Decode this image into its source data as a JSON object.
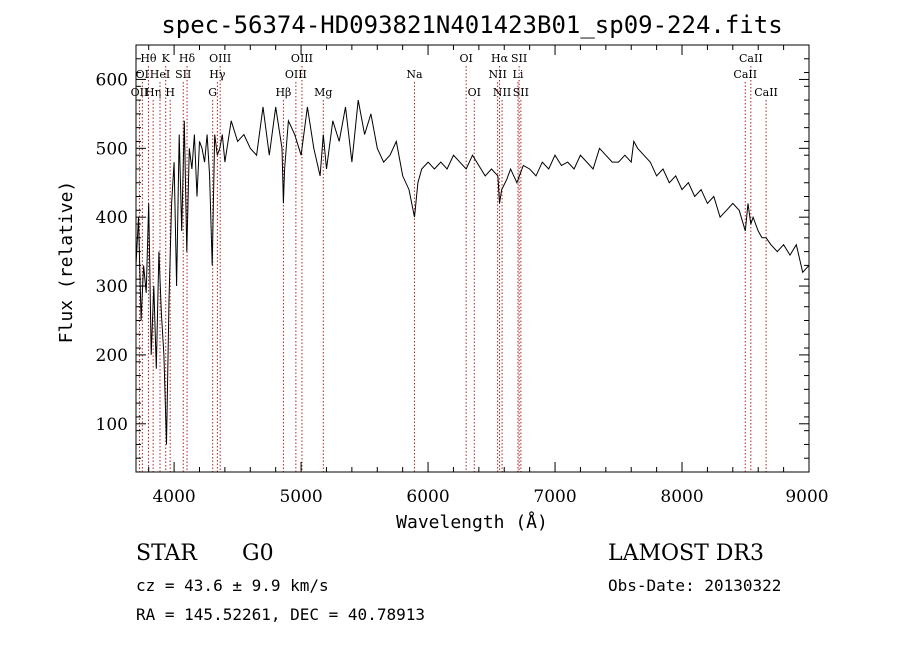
{
  "chart_data": {
    "type": "line",
    "title": "spec-56374-HD093821N401423B01_sp09-224.fits",
    "xlabel": "Wavelength (Å)",
    "ylabel": "Flux (relative)",
    "xlim": [
      3700,
      9000
    ],
    "ylim": [
      30,
      650
    ],
    "x_ticks": [
      4000,
      5000,
      6000,
      7000,
      8000,
      9000
    ],
    "y_ticks": [
      100,
      200,
      300,
      400,
      500,
      600
    ],
    "grid": false,
    "line_color": "#000000",
    "marker_color": "#b22222",
    "spectral_lines": [
      {
        "label": "OII",
        "wavelength": 3727,
        "row": 3
      },
      {
        "label": "Hθ",
        "wavelength": 3798,
        "row": 1
      },
      {
        "label": "OI",
        "wavelength": 3750,
        "row": 2
      },
      {
        "label": "Hη",
        "wavelength": 3835,
        "row": 3
      },
      {
        "label": "HeI",
        "wavelength": 3889,
        "row": 2
      },
      {
        "label": "K",
        "wavelength": 3934,
        "row": 1
      },
      {
        "label": "H",
        "wavelength": 3969,
        "row": 3
      },
      {
        "label": "SII",
        "wavelength": 4072,
        "row": 2
      },
      {
        "label": "Hδ",
        "wavelength": 4102,
        "row": 1
      },
      {
        "label": "OIII",
        "wavelength": 4363,
        "row": 1
      },
      {
        "label": "Hγ",
        "wavelength": 4341,
        "row": 2
      },
      {
        "label": "G",
        "wavelength": 4304,
        "row": 3
      },
      {
        "label": "Hβ",
        "wavelength": 4861,
        "row": 3
      },
      {
        "label": "OIII",
        "wavelength": 5007,
        "row": 1
      },
      {
        "label": "OIII",
        "wavelength": 4959,
        "row": 2
      },
      {
        "label": "Mg",
        "wavelength": 5175,
        "row": 3
      },
      {
        "label": "Na",
        "wavelength": 5893,
        "row": 2
      },
      {
        "label": "OI",
        "wavelength": 6300,
        "row": 1
      },
      {
        "label": "OI",
        "wavelength": 6364,
        "row": 3
      },
      {
        "label": "Hα",
        "wavelength": 6563,
        "row": 1
      },
      {
        "label": "NII",
        "wavelength": 6548,
        "row": 2
      },
      {
        "label": "NII",
        "wavelength": 6583,
        "row": 3
      },
      {
        "label": "SII",
        "wavelength": 6717,
        "row": 1
      },
      {
        "label": "Li",
        "wavelength": 6708,
        "row": 2
      },
      {
        "label": "SII",
        "wavelength": 6731,
        "row": 3
      },
      {
        "label": "CaII",
        "wavelength": 8542,
        "row": 1
      },
      {
        "label": "CaII",
        "wavelength": 8498,
        "row": 2
      },
      {
        "label": "CaII",
        "wavelength": 8662,
        "row": 3
      }
    ],
    "series": [
      {
        "x": [
          3700,
          3720,
          3740,
          3760,
          3780,
          3800,
          3820,
          3840,
          3860,
          3880,
          3900,
          3920,
          3940,
          3960,
          3980,
          4000,
          4020,
          4040,
          4060,
          4080,
          4100,
          4120,
          4140,
          4160,
          4180,
          4200,
          4220,
          4240,
          4260,
          4280,
          4300,
          4320,
          4340,
          4360,
          4380,
          4400,
          4450,
          4500,
          4550,
          4600,
          4650,
          4700,
          4750,
          4800,
          4850,
          4861,
          4870,
          4900,
          4950,
          5000,
          5050,
          5100,
          5150,
          5175,
          5200,
          5250,
          5300,
          5350,
          5400,
          5450,
          5500,
          5550,
          5600,
          5650,
          5700,
          5750,
          5800,
          5850,
          5893,
          5920,
          5950,
          6000,
          6050,
          6100,
          6150,
          6200,
          6250,
          6300,
          6350,
          6400,
          6450,
          6500,
          6550,
          6563,
          6580,
          6620,
          6650,
          6700,
          6750,
          6800,
          6850,
          6900,
          6950,
          7000,
          7050,
          7100,
          7150,
          7200,
          7250,
          7300,
          7350,
          7400,
          7450,
          7500,
          7550,
          7600,
          7620,
          7650,
          7700,
          7750,
          7800,
          7850,
          7900,
          7950,
          8000,
          8050,
          8100,
          8150,
          8200,
          8250,
          8300,
          8350,
          8400,
          8450,
          8498,
          8520,
          8542,
          8560,
          8600,
          8630,
          8662,
          8700,
          8750,
          8800,
          8850,
          8900,
          8950,
          9000
        ],
        "y": [
          330,
          400,
          250,
          330,
          290,
          420,
          200,
          300,
          180,
          350,
          260,
          200,
          70,
          280,
          420,
          480,
          300,
          520,
          380,
          540,
          350,
          500,
          470,
          520,
          430,
          510,
          500,
          480,
          520,
          460,
          330,
          520,
          490,
          500,
          520,
          480,
          540,
          510,
          520,
          500,
          490,
          560,
          490,
          560,
          500,
          420,
          470,
          540,
          520,
          490,
          560,
          500,
          460,
          520,
          470,
          540,
          510,
          560,
          480,
          570,
          520,
          550,
          500,
          480,
          490,
          510,
          460,
          440,
          400,
          450,
          470,
          480,
          470,
          480,
          470,
          490,
          480,
          470,
          490,
          475,
          460,
          470,
          460,
          420,
          440,
          455,
          470,
          450,
          475,
          470,
          460,
          480,
          470,
          490,
          475,
          480,
          470,
          490,
          480,
          470,
          500,
          490,
          480,
          480,
          490,
          480,
          510,
          500,
          490,
          480,
          460,
          470,
          450,
          460,
          440,
          450,
          430,
          440,
          420,
          430,
          400,
          410,
          420,
          410,
          380,
          420,
          390,
          400,
          380,
          370,
          370,
          360,
          350,
          360,
          345,
          360,
          320,
          330
        ]
      }
    ]
  },
  "info": {
    "object_class": "STAR",
    "subclass": "G0",
    "survey": "LAMOST DR3",
    "redshift": "cz = 43.6 ± 9.9 km/s",
    "obs_date": "Obs-Date: 20130322",
    "coords": "RA = 145.52261, DEC =  40.78913"
  }
}
